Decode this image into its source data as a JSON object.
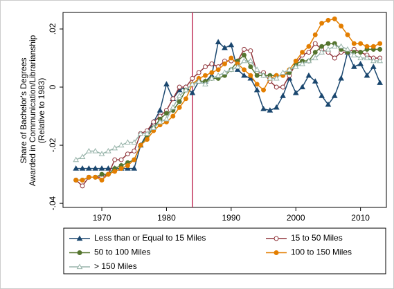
{
  "chart_data": {
    "type": "line",
    "ylabel": [
      "Share of Bachelor's Degrees",
      "Awarded in Communication/Librarianship",
      "(Relative to 1983)"
    ],
    "x": [
      1966,
      1967,
      1968,
      1969,
      1970,
      1971,
      1972,
      1973,
      1974,
      1975,
      1976,
      1977,
      1978,
      1979,
      1980,
      1981,
      1982,
      1983,
      1984,
      1985,
      1986,
      1987,
      1988,
      1989,
      1990,
      1991,
      1992,
      1993,
      1994,
      1995,
      1996,
      1997,
      1998,
      1999,
      2000,
      2001,
      2002,
      2003,
      2004,
      2005,
      2006,
      2007,
      2008,
      2009,
      2010,
      2011,
      2012,
      2013
    ],
    "series": [
      {
        "name": "Less than or Equal to 15 Miles",
        "color": "#1a476f",
        "marker": "triangle",
        "filled": true,
        "values": [
          -0.028,
          -0.028,
          -0.028,
          -0.028,
          -0.028,
          -0.028,
          -0.028,
          -0.028,
          -0.028,
          -0.028,
          -0.02,
          -0.016,
          -0.012,
          -0.008,
          0.001,
          -0.004,
          -0.001,
          0.0,
          -0.002,
          0.002,
          0.002,
          0.004,
          0.0155,
          0.0135,
          0.0145,
          0.006,
          0.004,
          0.003,
          -0.001,
          -0.0075,
          -0.008,
          -0.007,
          -0.003,
          0.003,
          -0.002,
          0.0,
          0.004,
          0.002,
          -0.003,
          -0.006,
          -0.003,
          0.003,
          0.012,
          0.007,
          0.008,
          0.004,
          0.007,
          0.0015
        ]
      },
      {
        "name": "15 to 50 Miles",
        "color": "#90353b",
        "marker": "circle",
        "filled": false,
        "values": [
          -0.032,
          -0.034,
          -0.031,
          -0.031,
          -0.031,
          -0.03,
          -0.025,
          -0.025,
          -0.023,
          -0.022,
          -0.016,
          -0.015,
          -0.012,
          -0.01,
          -0.008,
          -0.004,
          0.0,
          0.0,
          0.003,
          0.005,
          0.007,
          0.008,
          0.007,
          0.009,
          0.009,
          0.009,
          0.013,
          0.0125,
          0.005,
          0.005,
          0.002,
          0.0,
          0.0,
          0.004,
          0.008,
          0.011,
          0.012,
          0.015,
          0.013,
          0.012,
          0.01,
          0.012,
          0.012,
          0.013,
          0.012,
          0.011,
          0.01,
          0.01
        ]
      },
      {
        "name": "50 to 100 Miles",
        "color": "#55752f",
        "marker": "circle",
        "filled": true,
        "values": [
          -0.032,
          -0.032,
          -0.031,
          -0.031,
          -0.03,
          -0.03,
          -0.028,
          -0.027,
          -0.026,
          -0.025,
          -0.02,
          -0.017,
          -0.014,
          -0.011,
          -0.009,
          -0.008,
          -0.005,
          -0.001,
          0.001,
          0.002,
          0.002,
          0.003,
          0.003,
          0.004,
          0.006,
          0.009,
          0.011,
          0.007,
          0.004,
          0.004,
          0.004,
          0.004,
          0.004,
          0.005,
          0.008,
          0.009,
          0.009,
          0.012,
          0.014,
          0.015,
          0.015,
          0.013,
          0.012,
          0.012,
          0.012,
          0.013,
          0.013,
          0.013
        ]
      },
      {
        "name": "100 to 150 Miles",
        "color": "#e37e00",
        "marker": "circle",
        "filled": true,
        "values": [
          -0.032,
          -0.032,
          -0.031,
          -0.031,
          -0.032,
          -0.03,
          -0.029,
          -0.028,
          -0.027,
          -0.025,
          -0.02,
          -0.018,
          -0.015,
          -0.013,
          -0.012,
          -0.01,
          -0.007,
          -0.004,
          0.001,
          0.003,
          0.004,
          0.005,
          0.006,
          0.008,
          0.01,
          0.008,
          0.006,
          0.004,
          0.001,
          -0.001,
          0.003,
          0.004,
          0.004,
          0.006,
          0.009,
          0.012,
          0.014,
          0.018,
          0.022,
          0.023,
          0.0235,
          0.021,
          0.018,
          0.015,
          0.015,
          0.014,
          0.014,
          0.015
        ]
      },
      {
        "name": "> 150 Miles",
        "color": "#98b4aa",
        "marker": "triangle",
        "filled": false,
        "values": [
          -0.025,
          -0.024,
          -0.022,
          -0.022,
          -0.023,
          -0.022,
          -0.021,
          -0.02,
          -0.019,
          -0.019,
          -0.016,
          -0.016,
          -0.014,
          -0.012,
          -0.011,
          -0.007,
          -0.003,
          -0.001,
          0.001,
          0.002,
          0.001,
          0.003,
          0.004,
          0.005,
          0.006,
          0.007,
          0.009,
          0.009,
          0.006,
          0.004,
          0.003,
          0.003,
          0.005,
          0.006,
          0.007,
          0.008,
          0.009,
          0.01,
          0.012,
          0.013,
          0.014,
          0.014,
          0.013,
          0.011,
          0.01,
          0.01,
          0.009,
          0.009
        ]
      }
    ],
    "xlim": [
      1964,
      2014
    ],
    "xticks": [
      1970,
      1980,
      1990,
      2000,
      2010
    ],
    "ylim": [
      -0.0414,
      0.0257
    ],
    "yticks": [
      {
        "value": -0.04,
        "label": "-.04"
      },
      {
        "value": -0.02,
        "label": "-.02"
      },
      0,
      {
        "value": 0.02,
        "label": ".02"
      }
    ],
    "vline": 1984,
    "vline_color": "#c0305a",
    "legend": "bottom"
  }
}
